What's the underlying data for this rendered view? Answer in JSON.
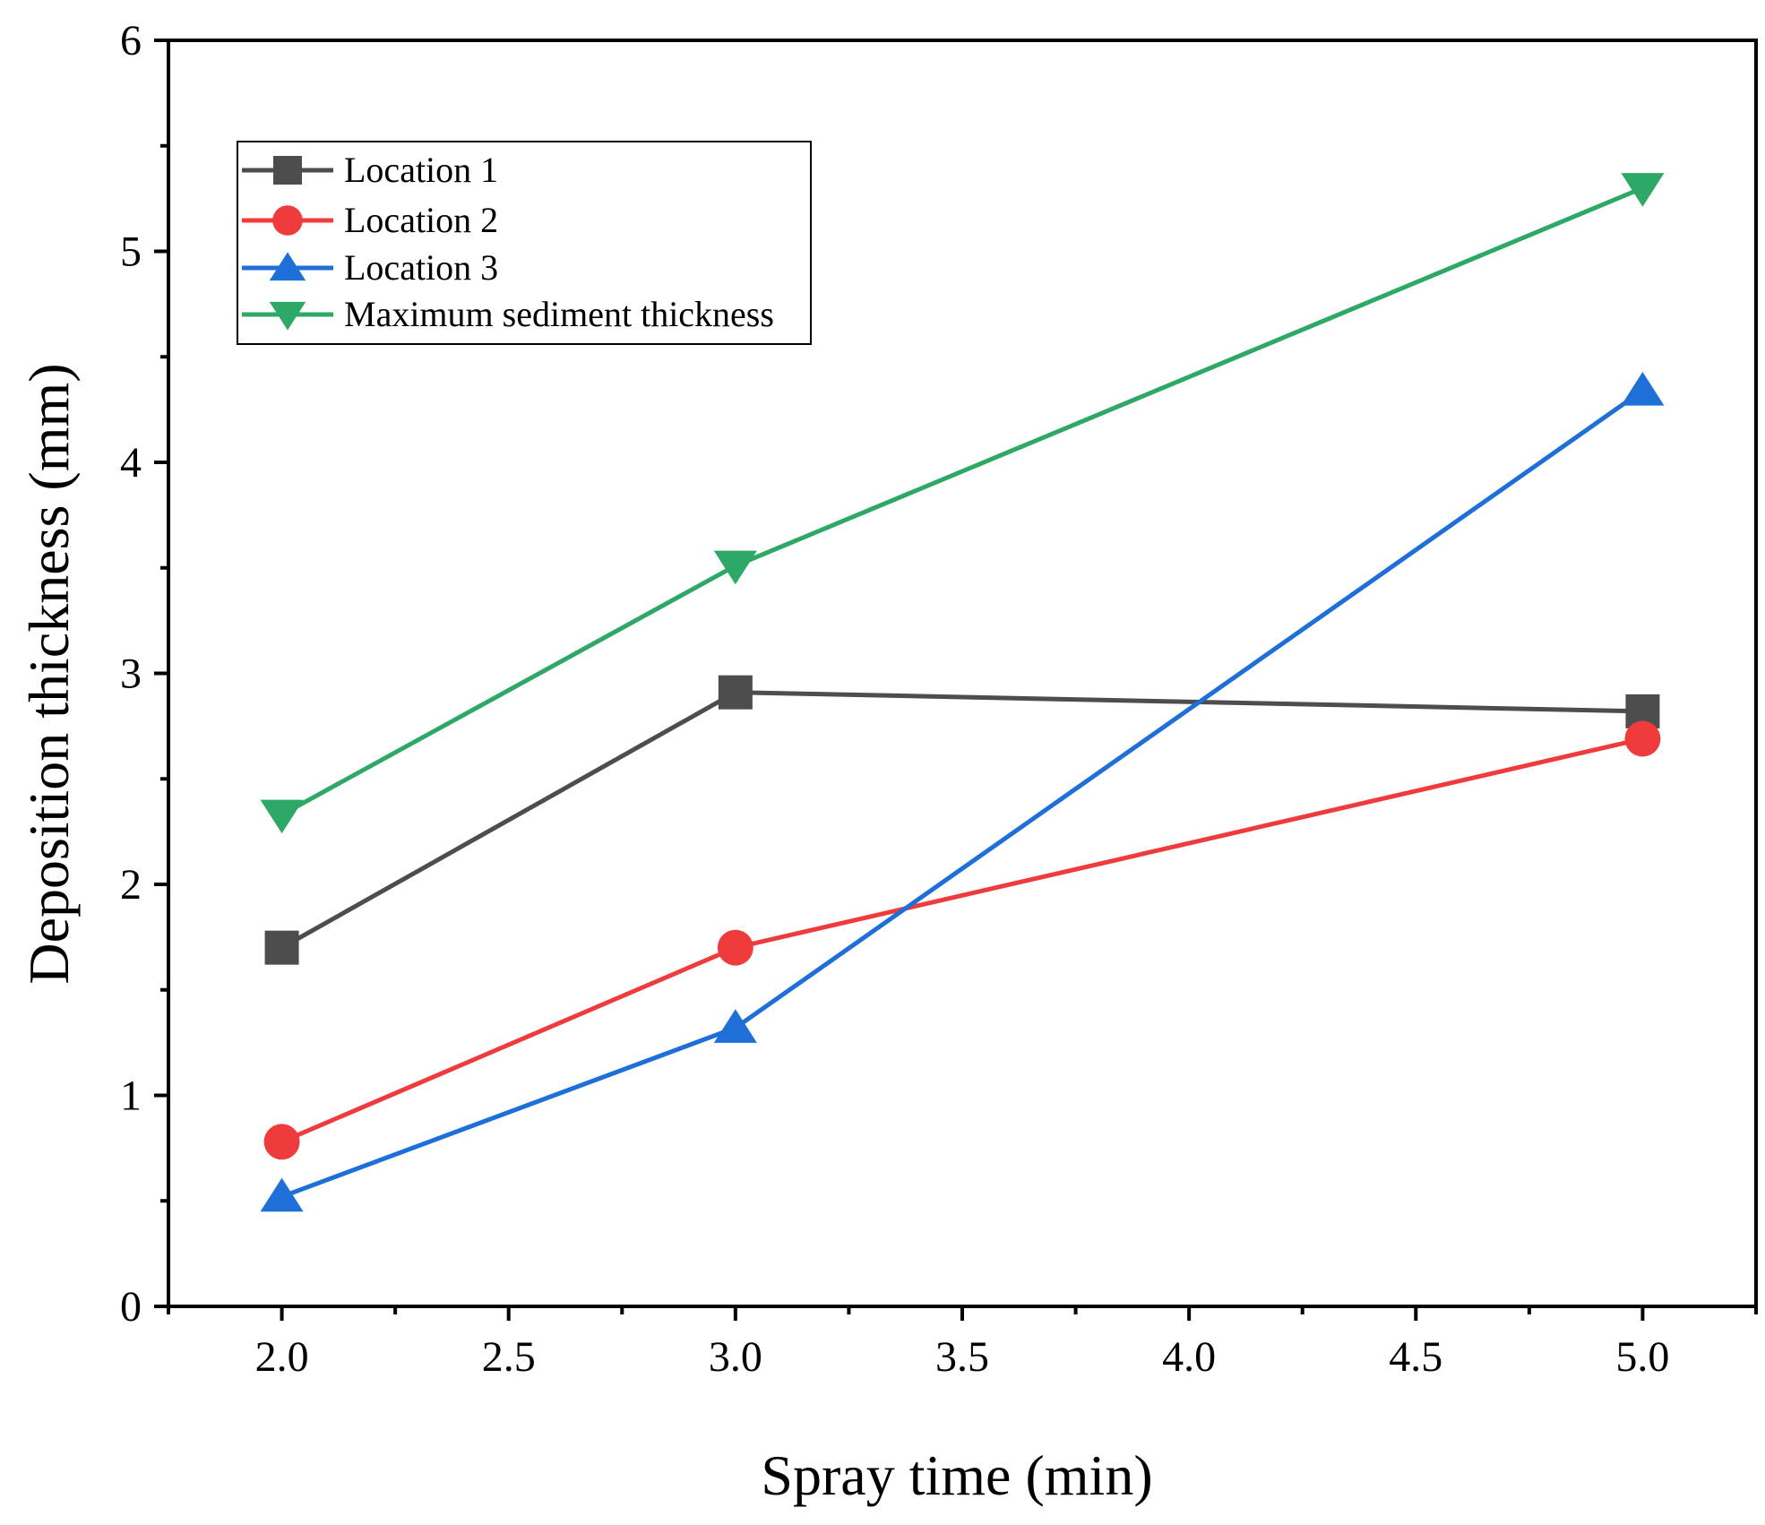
{
  "chart_data": {
    "type": "line",
    "title": "",
    "xlabel": "Spray time (min)",
    "ylabel": "Deposition thickness (mm)",
    "xlim": [
      1.75,
      5.25
    ],
    "ylim": [
      0,
      6
    ],
    "x_ticks": [
      2.0,
      2.5,
      3.0,
      3.5,
      4.0,
      4.5,
      5.0
    ],
    "x_tick_labels": [
      "2.0",
      "2.5",
      "3.0",
      "3.5",
      "4.0",
      "4.5",
      "5.0"
    ],
    "y_ticks": [
      0,
      1,
      2,
      3,
      4,
      5,
      6
    ],
    "y_tick_labels": [
      "0",
      "1",
      "2",
      "3",
      "4",
      "5",
      "6"
    ],
    "grid": false,
    "legend_position": "top-left",
    "series": [
      {
        "name": "Location 1",
        "color": "#4d4d4d",
        "marker": "square",
        "x": [
          2.0,
          3.0,
          5.0
        ],
        "values": [
          1.7,
          2.91,
          2.82
        ]
      },
      {
        "name": "Location 2",
        "color": "#ef3b3b",
        "marker": "circle",
        "x": [
          2.0,
          3.0,
          5.0
        ],
        "values": [
          0.78,
          1.7,
          2.69
        ]
      },
      {
        "name": "Location 3",
        "color": "#1f6fd8",
        "marker": "triangle-up",
        "x": [
          2.0,
          3.0,
          5.0
        ],
        "values": [
          0.52,
          1.32,
          4.34
        ]
      },
      {
        "name": "Maximum sediment thickness",
        "color": "#2ea866",
        "marker": "triangle-down",
        "x": [
          2.0,
          3.0,
          5.0
        ],
        "values": [
          2.33,
          3.51,
          5.3
        ]
      }
    ]
  }
}
